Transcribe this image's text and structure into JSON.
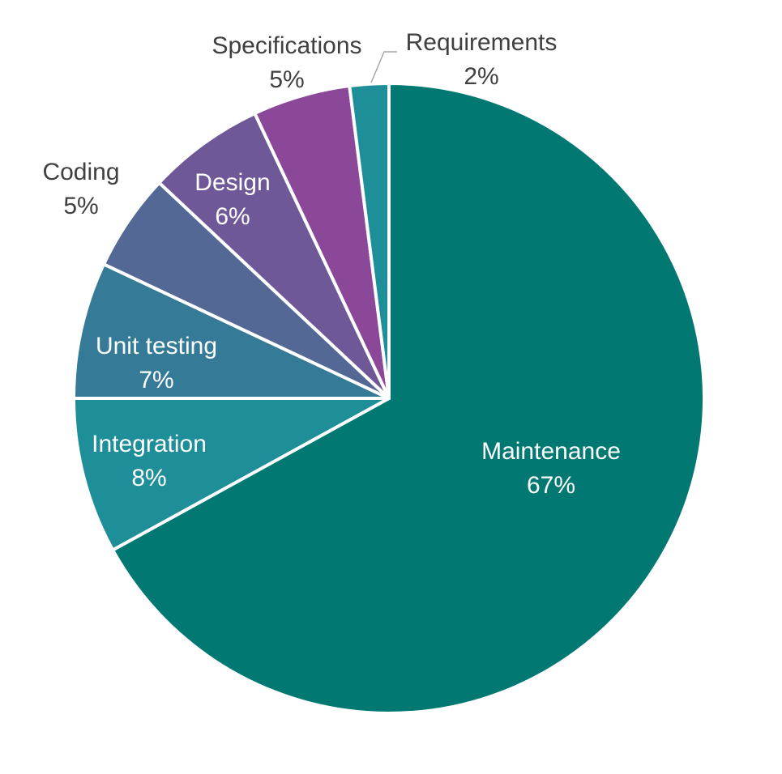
{
  "chart_data": {
    "type": "pie",
    "title": "",
    "slices": [
      {
        "name": "Maintenance",
        "value": 67,
        "pct_label": "67%",
        "color": "#017872",
        "label_color": "#ffffff"
      },
      {
        "name": "Integration",
        "value": 8,
        "pct_label": "8%",
        "color": "#1e8e99",
        "label_color": "#ffffff"
      },
      {
        "name": "Unit testing",
        "value": 7,
        "pct_label": "7%",
        "color": "#357b97",
        "label_color": "#ffffff"
      },
      {
        "name": "Coding",
        "value": 5,
        "pct_label": "5%",
        "color": "#546896",
        "label_color": "#404040"
      },
      {
        "name": "Design",
        "value": 6,
        "pct_label": "6%",
        "color": "#6f5898",
        "label_color": "#ffffff"
      },
      {
        "name": "Specifications",
        "value": 5,
        "pct_label": "5%",
        "color": "#8b4798",
        "label_color": "#404040"
      },
      {
        "name": "Requirements",
        "value": 2,
        "pct_label": "2%",
        "color": "#1e8e99",
        "label_color": "#404040"
      }
    ],
    "start_angle_deg": 0,
    "direction": "clockwise",
    "legend": "none",
    "slice_border_color": "#ffffff",
    "leader_line_color": "#a6a6a6"
  }
}
